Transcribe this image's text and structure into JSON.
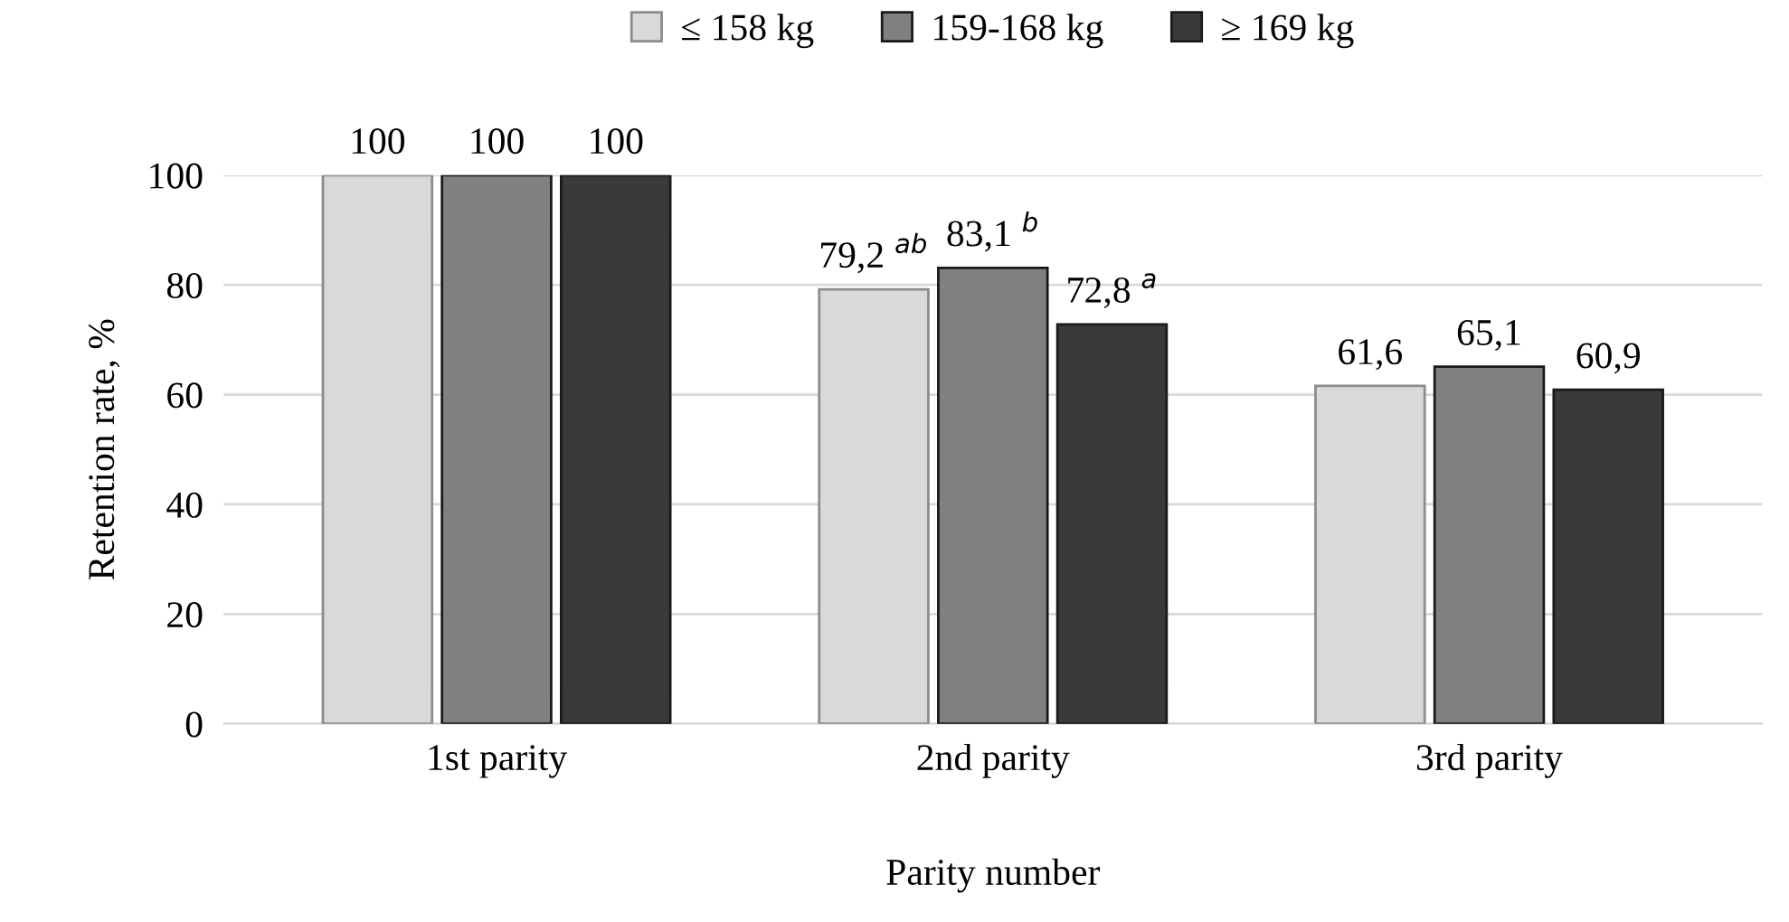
{
  "chart_data": {
    "type": "bar",
    "xlabel": "Parity number",
    "ylabel": "Retention rate, %",
    "categories": [
      "1st parity",
      "2nd parity",
      "3rd parity"
    ],
    "series": [
      {
        "name": "≤ 158 kg",
        "color": "#d9d9d9",
        "values": [
          100,
          79.2,
          61.6
        ],
        "value_labels": [
          "100",
          "79,2 $^{ab}$",
          "61,6"
        ]
      },
      {
        "name": "159-168 kg",
        "color": "#808080",
        "values": [
          100,
          83.1,
          65.1
        ],
        "value_labels": [
          "100",
          "83,1 $^{b}$",
          "65,1"
        ]
      },
      {
        "name": "≥ 169 kg",
        "color": "#3a3a3a",
        "values": [
          100,
          72.8,
          60.9
        ],
        "value_labels": [
          "100",
          "72,8 $^{a}$",
          "60,9"
        ]
      }
    ],
    "ylim": [
      0,
      100
    ],
    "yticks": [
      0,
      20,
      40,
      60,
      80,
      100
    ],
    "grid": "y",
    "legend": "top"
  }
}
